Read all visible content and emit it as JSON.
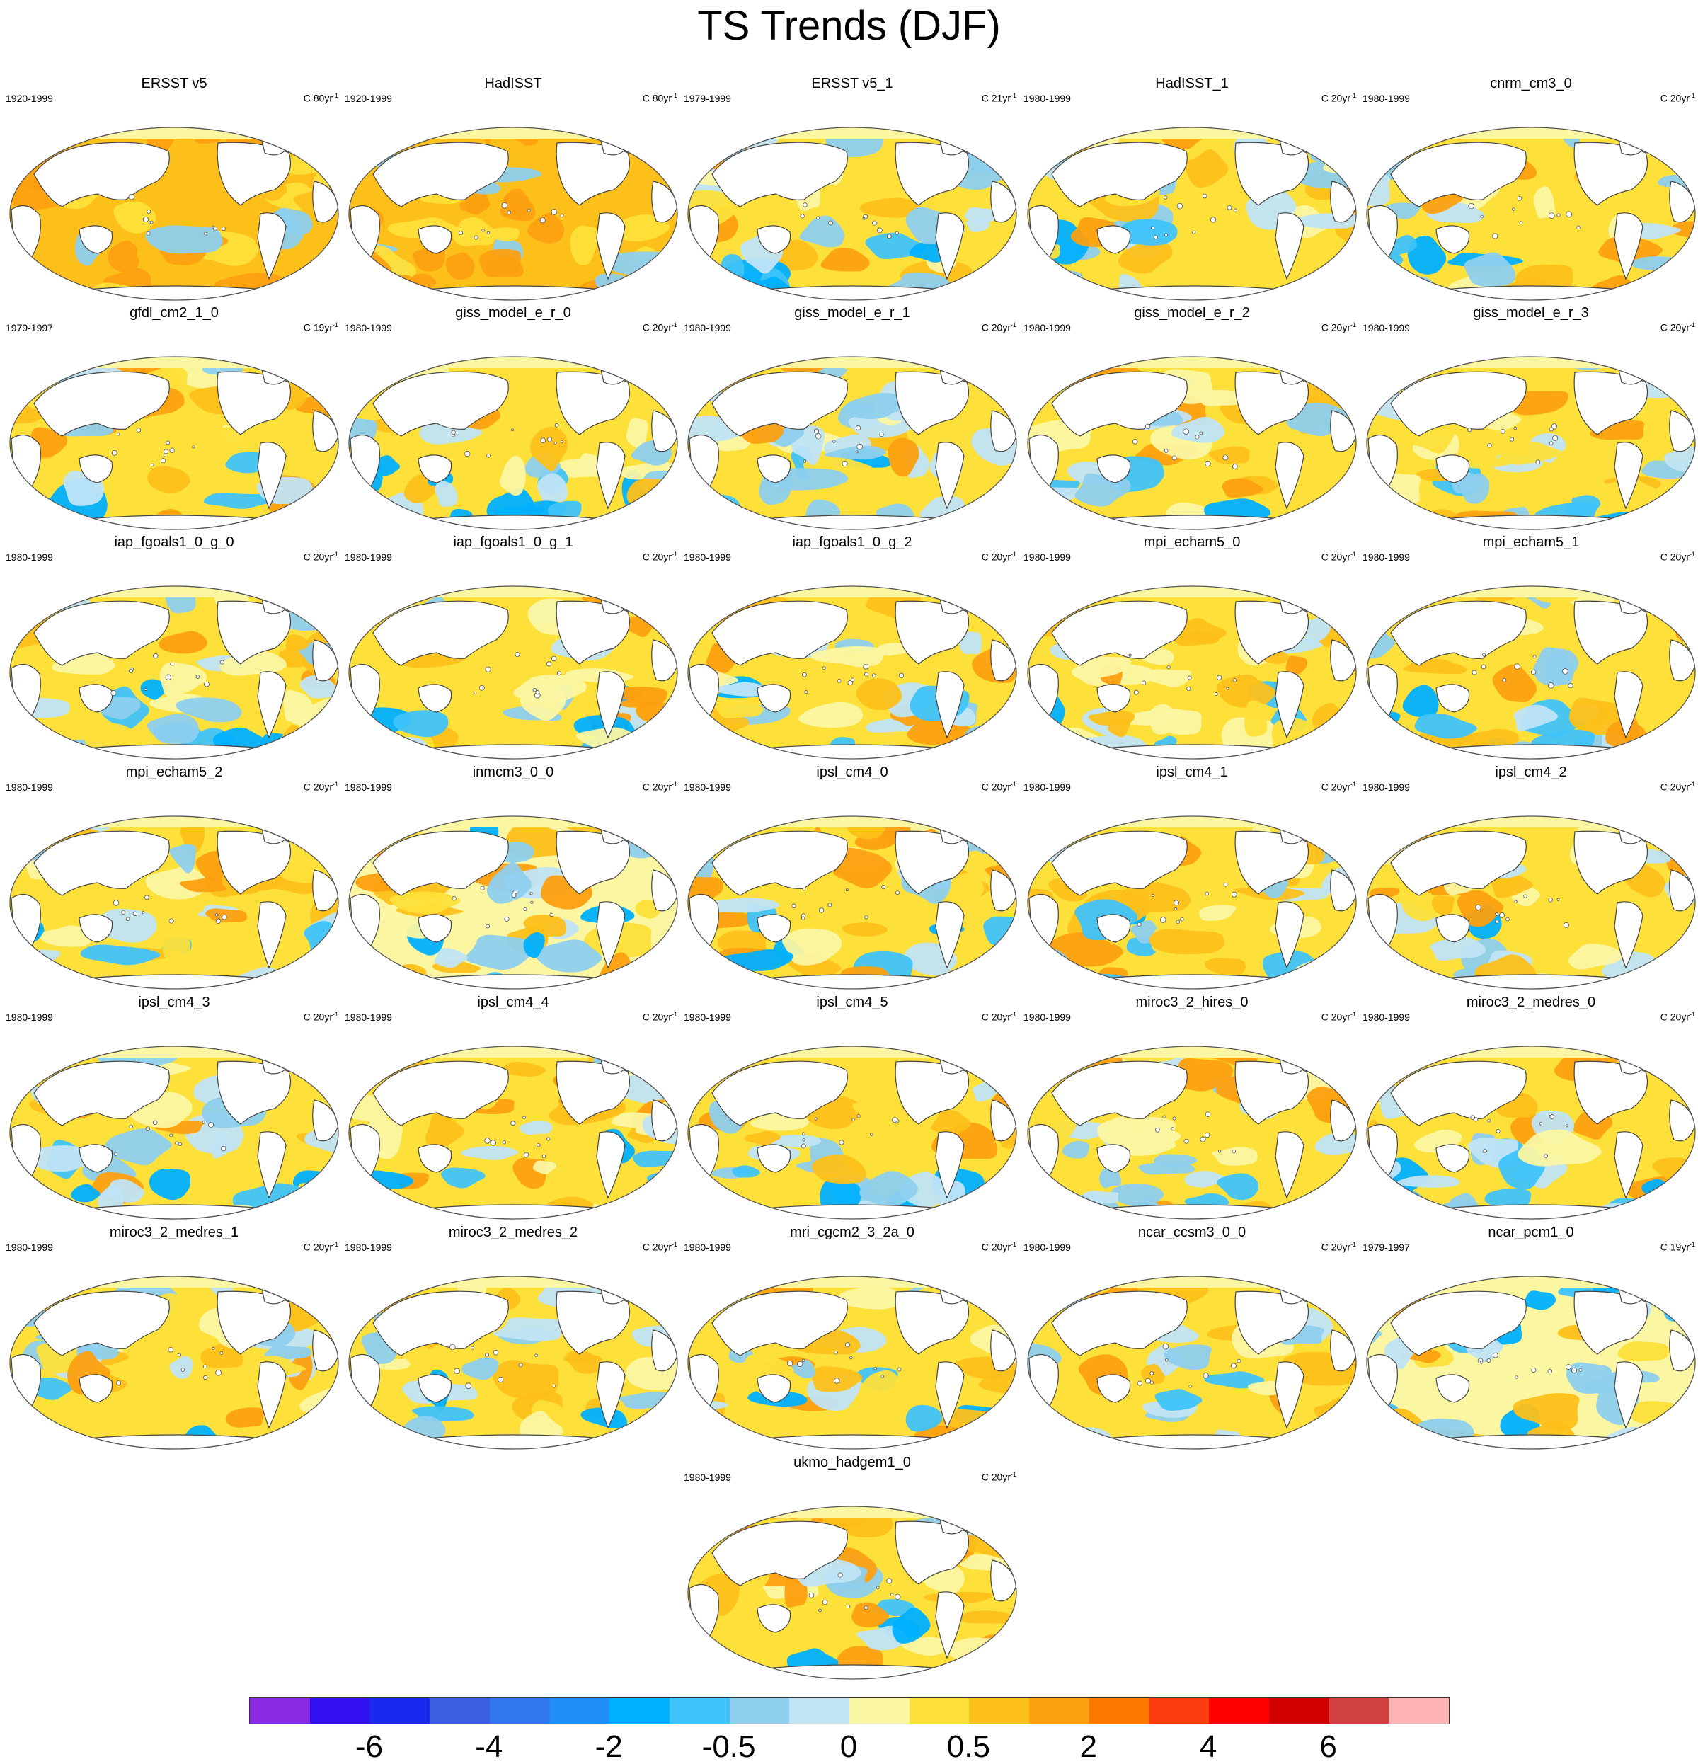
{
  "title": "TS Trends (DJF)",
  "panels": [
    {
      "name": "ERSST v5",
      "period": "1920-1999",
      "unit_value": "80",
      "style": "warm"
    },
    {
      "name": "HadISST",
      "period": "1920-1999",
      "unit_value": "80",
      "style": "warm"
    },
    {
      "name": "ERSST v5_1",
      "period": "1979-1999",
      "unit_value": "21",
      "style": "obs_recent"
    },
    {
      "name": "HadISST_1",
      "period": "1980-1999",
      "unit_value": "20",
      "style": "obs_recent"
    },
    {
      "name": "cnrm_cm3_0",
      "period": "1980-1999",
      "unit_value": "20",
      "style": "mixed"
    },
    {
      "name": "gfdl_cm2_1_0",
      "period": "1979-1997",
      "unit_value": "19",
      "style": "mixed"
    },
    {
      "name": "giss_model_e_r_0",
      "period": "1980-1999",
      "unit_value": "20",
      "style": "mixed"
    },
    {
      "name": "giss_model_e_r_1",
      "period": "1980-1999",
      "unit_value": "20",
      "style": "mixed"
    },
    {
      "name": "giss_model_e_r_2",
      "period": "1980-1999",
      "unit_value": "20",
      "style": "mixed"
    },
    {
      "name": "giss_model_e_r_3",
      "period": "1980-1999",
      "unit_value": "20",
      "style": "mixed"
    },
    {
      "name": "iap_fgoals1_0_g_0",
      "period": "1980-1999",
      "unit_value": "20",
      "style": "mixed"
    },
    {
      "name": "iap_fgoals1_0_g_1",
      "period": "1980-1999",
      "unit_value": "20",
      "style": "mixed"
    },
    {
      "name": "iap_fgoals1_0_g_2",
      "period": "1980-1999",
      "unit_value": "20",
      "style": "mixed"
    },
    {
      "name": "mpi_echam5_0",
      "period": "1980-1999",
      "unit_value": "20",
      "style": "mixed"
    },
    {
      "name": "mpi_echam5_1",
      "period": "1980-1999",
      "unit_value": "20",
      "style": "mixed"
    },
    {
      "name": "mpi_echam5_2",
      "period": "1980-1999",
      "unit_value": "20",
      "style": "mixed"
    },
    {
      "name": "inmcm3_0_0",
      "period": "1980-1999",
      "unit_value": "20",
      "style": "cool"
    },
    {
      "name": "ipsl_cm4_0",
      "period": "1980-1999",
      "unit_value": "20",
      "style": "mixed"
    },
    {
      "name": "ipsl_cm4_1",
      "period": "1980-1999",
      "unit_value": "20",
      "style": "mixed"
    },
    {
      "name": "ipsl_cm4_2",
      "period": "1980-1999",
      "unit_value": "20",
      "style": "mixed"
    },
    {
      "name": "ipsl_cm4_3",
      "period": "1980-1999",
      "unit_value": "20",
      "style": "mixed"
    },
    {
      "name": "ipsl_cm4_4",
      "period": "1980-1999",
      "unit_value": "20",
      "style": "mixed"
    },
    {
      "name": "ipsl_cm4_5",
      "period": "1980-1999",
      "unit_value": "20",
      "style": "mixed"
    },
    {
      "name": "miroc3_2_hires_0",
      "period": "1980-1999",
      "unit_value": "20",
      "style": "mixed"
    },
    {
      "name": "miroc3_2_medres_0",
      "period": "1980-1999",
      "unit_value": "20",
      "style": "mixed"
    },
    {
      "name": "miroc3_2_medres_1",
      "period": "1980-1999",
      "unit_value": "20",
      "style": "mixed"
    },
    {
      "name": "miroc3_2_medres_2",
      "period": "1980-1999",
      "unit_value": "20",
      "style": "mixed"
    },
    {
      "name": "mri_cgcm2_3_2a_0",
      "period": "1980-1999",
      "unit_value": "20",
      "style": "mixed"
    },
    {
      "name": "ncar_ccsm3_0_0",
      "period": "1980-1999",
      "unit_value": "20",
      "style": "mixed"
    },
    {
      "name": "ncar_pcm1_0",
      "period": "1979-1997",
      "unit_value": "19",
      "style": "cool"
    },
    {
      "name": "ukmo_hadgem1_0",
      "period": "1980-1999",
      "unit_value": "20",
      "style": "mixed"
    }
  ],
  "unit_prefix": "C ",
  "unit_suffix": "yr",
  "unit_exponent": "-1",
  "colorbar": {
    "colors": [
      "#8a2be2",
      "#3310f0",
      "#1a28f0",
      "#3a5ee0",
      "#2f78ee",
      "#2090f8",
      "#00b0ff",
      "#3fc3fa",
      "#8ecfee",
      "#c0e4f6",
      "#fbf6a2",
      "#fde03a",
      "#fdc01a",
      "#fda010",
      "#fd7a00",
      "#fd3c10",
      "#ff0000",
      "#d00000",
      "#d04040",
      "#ffb4b4"
    ],
    "tick_labels": [
      "-6",
      "-4",
      "-2",
      "-0.5",
      "0",
      "0.5",
      "2",
      "4",
      "6"
    ]
  }
}
